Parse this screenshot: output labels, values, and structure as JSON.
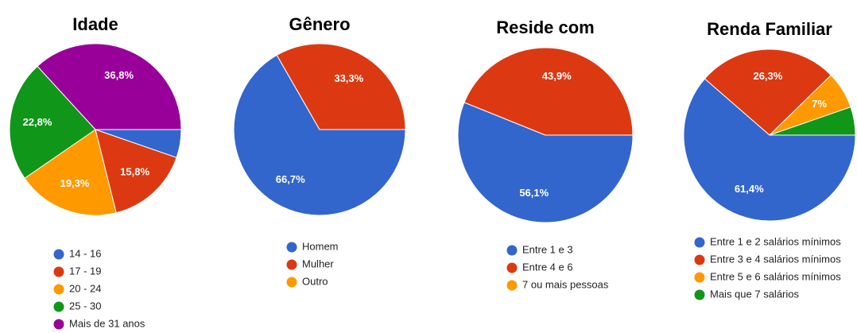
{
  "chart_data": [
    {
      "type": "pie",
      "title": "Idade",
      "categories": [
        "14 - 16",
        "17 - 19",
        "20 - 24",
        "25 - 30",
        "Mais de 31 anos"
      ],
      "values": [
        5.3,
        15.8,
        19.3,
        22.8,
        36.8
      ],
      "value_labels": [
        null,
        "15,8%",
        "19,3%",
        "22,8%",
        "36,8%"
      ],
      "colors": [
        "#3366cc",
        "#dc3912",
        "#ff9900",
        "#109618",
        "#990099"
      ]
    },
    {
      "type": "pie",
      "title": "Gênero",
      "categories": [
        "Homem",
        "Mulher",
        "Outro"
      ],
      "values": [
        66.7,
        33.3,
        0
      ],
      "value_labels": [
        "66,7%",
        "33,3%",
        null
      ],
      "colors": [
        "#3366cc",
        "#dc3912",
        "#ff9900"
      ]
    },
    {
      "type": "pie",
      "title": "Reside com",
      "categories": [
        "Entre 1 e 3",
        "Entre 4 e 6",
        "7 ou mais pessoas"
      ],
      "values": [
        56.1,
        43.9,
        0
      ],
      "value_labels": [
        "56,1%",
        "43,9%",
        null
      ],
      "colors": [
        "#3366cc",
        "#dc3912",
        "#ff9900"
      ]
    },
    {
      "type": "pie",
      "title": "Renda Familiar",
      "categories": [
        "Entre 1 e 2 salários mínimos",
        "Entre 3 e 4 salários mínimos",
        "Entre 5 e 6 salários mínimos",
        "Mais que 7 salários"
      ],
      "values": [
        61.4,
        26.3,
        7,
        5.3
      ],
      "value_labels": [
        "61,4%",
        "26,3%",
        "7%",
        null
      ],
      "colors": [
        "#3366cc",
        "#dc3912",
        "#ff9900",
        "#109618"
      ]
    }
  ]
}
